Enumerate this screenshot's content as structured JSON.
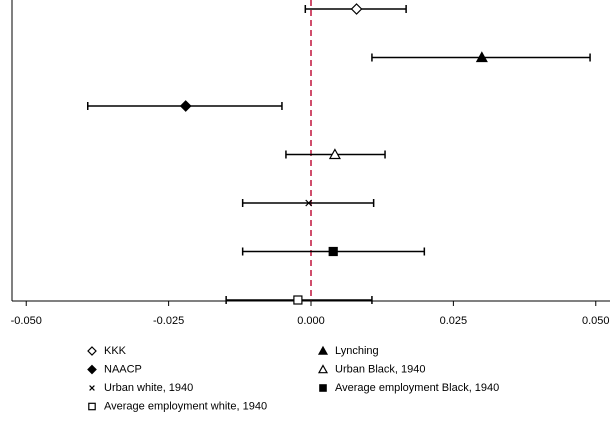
{
  "chart_data": {
    "type": "coefplot",
    "xlim": [
      -0.0525,
      0.0525
    ],
    "xticks": [
      {
        "value": -0.05,
        "label": "-0.050"
      },
      {
        "value": -0.025,
        "label": "-0.025"
      },
      {
        "value": 0,
        "label": "0.000"
      },
      {
        "value": 0.025,
        "label": "0.025"
      },
      {
        "value": 0.05,
        "label": "0.050"
      }
    ],
    "reference_line": {
      "value": 0,
      "color": "#c0143c"
    },
    "series": [
      {
        "name": "KKK",
        "marker": "diamond-open",
        "value": 0.008,
        "lower": -0.001,
        "upper": 0.0167
      },
      {
        "name": "Lynching",
        "marker": "triangle-filled",
        "value": 0.03,
        "lower": 0.0107,
        "upper": 0.049
      },
      {
        "name": "NAACP",
        "marker": "diamond-filled",
        "value": -0.022,
        "lower": -0.0392,
        "upper": -0.0051
      },
      {
        "name": "Urban Black, 1940",
        "marker": "triangle-open",
        "value": 0.0042,
        "lower": -0.0044,
        "upper": 0.013
      },
      {
        "name": "Urban white, 1940",
        "marker": "x",
        "value": -0.0004,
        "lower": -0.012,
        "upper": 0.011
      },
      {
        "name": "Average employment Black, 1940",
        "marker": "square-filled",
        "value": 0.0039,
        "lower": -0.012,
        "upper": 0.0199
      },
      {
        "name": "Average employment white, 1940",
        "marker": "square-open",
        "value": -0.0023,
        "lower": -0.0149,
        "upper": 0.0107
      }
    ]
  }
}
